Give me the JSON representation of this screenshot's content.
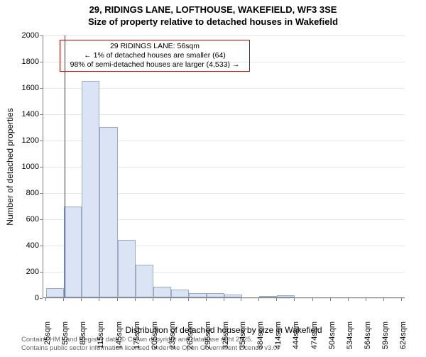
{
  "title": {
    "line1": "29, RIDINGS LANE, LOFTHOUSE, WAKEFIELD, WF3 3SE",
    "line2": "Size of property relative to detached houses in Wakefield",
    "fontsize": 13
  },
  "chart": {
    "type": "histogram",
    "plot_bg": "#ffffff",
    "grid_color": "#e6e6e6",
    "axis_color": "#808080",
    "bar_fill": "#dbe4f5",
    "bar_border": "#9aabc8",
    "marker_color": "#c00000",
    "annotation_border": "#c00000",
    "ylim": [
      0,
      2000
    ],
    "ytick_step": 200,
    "y_ticks": [
      0,
      200,
      400,
      600,
      800,
      1000,
      1200,
      1400,
      1600,
      1800,
      2000
    ],
    "x_ticks": [
      "25sqm",
      "55sqm",
      "85sqm",
      "115sqm",
      "145sqm",
      "175sqm",
      "205sqm",
      "235sqm",
      "265sqm",
      "295sqm",
      "325sqm",
      "354sqm",
      "384sqm",
      "414sqm",
      "444sqm",
      "474sqm",
      "504sqm",
      "534sqm",
      "564sqm",
      "594sqm",
      "624sqm"
    ],
    "x_tick_positions": [
      25,
      55,
      85,
      115,
      145,
      175,
      205,
      235,
      265,
      295,
      325,
      354,
      384,
      414,
      444,
      474,
      504,
      534,
      564,
      594,
      624
    ],
    "xlim": [
      20,
      630
    ],
    "bin_width": 30,
    "bins": [
      {
        "start": 25,
        "count": 70
      },
      {
        "start": 55,
        "count": 690
      },
      {
        "start": 85,
        "count": 1650
      },
      {
        "start": 115,
        "count": 1300
      },
      {
        "start": 145,
        "count": 440
      },
      {
        "start": 175,
        "count": 250
      },
      {
        "start": 205,
        "count": 80
      },
      {
        "start": 235,
        "count": 60
      },
      {
        "start": 265,
        "count": 30
      },
      {
        "start": 295,
        "count": 30
      },
      {
        "start": 325,
        "count": 20
      },
      {
        "start": 354,
        "count": 0
      },
      {
        "start": 384,
        "count": 5
      },
      {
        "start": 414,
        "count": 15
      },
      {
        "start": 444,
        "count": 0
      },
      {
        "start": 474,
        "count": 0
      },
      {
        "start": 504,
        "count": 0
      },
      {
        "start": 534,
        "count": 0
      },
      {
        "start": 564,
        "count": 0
      },
      {
        "start": 594,
        "count": 0
      }
    ],
    "marker_value": 56,
    "ylabel": "Number of detached properties",
    "xlabel": "Distribution of detached houses by size in Wakefield",
    "label_fontsize": 12,
    "tick_fontsize": 11
  },
  "annotation": {
    "line1": "29 RIDINGS LANE: 56sqm",
    "line2": "← 1% of detached houses are smaller (64)",
    "line3": "98% of semi-detached houses are larger (4,533) →"
  },
  "footer": {
    "line1": "Contains HM Land Registry data © Crown copyright and database right 2025.",
    "line2": "Contains public sector information licensed under the Open Government Licence v3.0.",
    "color": "#666666"
  }
}
